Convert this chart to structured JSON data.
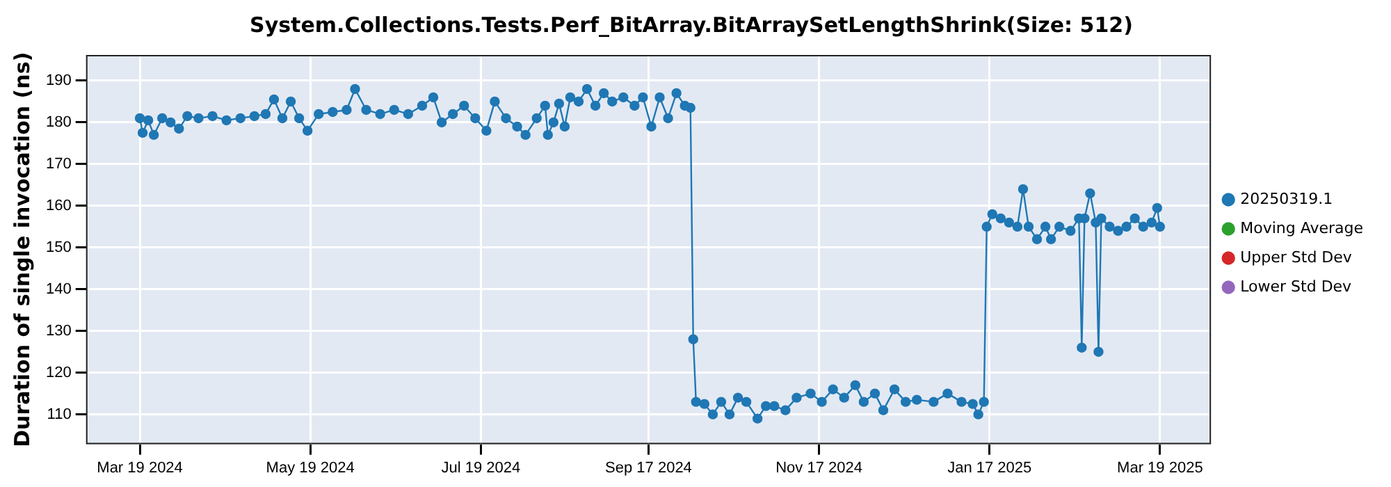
{
  "chart_data": {
    "type": "line",
    "title": "System.Collections.Tests.Perf_BitArray.BitArraySetLengthShrink(Size: 512)",
    "ylabel": "Duration of single invocation (ns)",
    "xlim": [
      "2024-02-29",
      "2025-04-06"
    ],
    "xticks": [
      {
        "value": "2024-03-19",
        "label": "Mar 19 2024"
      },
      {
        "value": "2024-05-19",
        "label": "May 19 2024"
      },
      {
        "value": "2024-07-19",
        "label": "Jul 19 2024"
      },
      {
        "value": "2024-09-17",
        "label": "Sep 17 2024"
      },
      {
        "value": "2024-11-17",
        "label": "Nov 17 2024"
      },
      {
        "value": "2025-01-17",
        "label": "Jan 17 2025"
      },
      {
        "value": "2025-03-19",
        "label": "Mar 19 2025"
      }
    ],
    "ylim": [
      103,
      196
    ],
    "yticks": [
      110,
      120,
      130,
      140,
      150,
      160,
      170,
      180,
      190
    ],
    "grid": true,
    "legend": "right",
    "marker": "circle",
    "line_style": "solid",
    "series": [
      {
        "name": "20250319.1",
        "color": "#1f77b4",
        "x": [
          "2024-03-19",
          "2024-03-20",
          "2024-03-22",
          "2024-03-24",
          "2024-03-27",
          "2024-03-30",
          "2024-04-02",
          "2024-04-05",
          "2024-04-09",
          "2024-04-14",
          "2024-04-19",
          "2024-04-24",
          "2024-04-29",
          "2024-05-03",
          "2024-05-06",
          "2024-05-09",
          "2024-05-12",
          "2024-05-15",
          "2024-05-18",
          "2024-05-22",
          "2024-05-27",
          "2024-06-01",
          "2024-06-04",
          "2024-06-08",
          "2024-06-13",
          "2024-06-18",
          "2024-06-23",
          "2024-06-28",
          "2024-07-02",
          "2024-07-05",
          "2024-07-09",
          "2024-07-13",
          "2024-07-17",
          "2024-07-21",
          "2024-07-24",
          "2024-07-28",
          "2024-08-01",
          "2024-08-04",
          "2024-08-08",
          "2024-08-11",
          "2024-08-12",
          "2024-08-14",
          "2024-08-16",
          "2024-08-18",
          "2024-08-20",
          "2024-08-23",
          "2024-08-26",
          "2024-08-29",
          "2024-09-01",
          "2024-09-04",
          "2024-09-08",
          "2024-09-12",
          "2024-09-15",
          "2024-09-18",
          "2024-09-21",
          "2024-09-24",
          "2024-09-27",
          "2024-09-30",
          "2024-10-02",
          "2024-10-03",
          "2024-10-04",
          "2024-10-07",
          "2024-10-10",
          "2024-10-13",
          "2024-10-16",
          "2024-10-19",
          "2024-10-22",
          "2024-10-26",
          "2024-10-29",
          "2024-11-01",
          "2024-11-05",
          "2024-11-09",
          "2024-11-14",
          "2024-11-18",
          "2024-11-22",
          "2024-11-26",
          "2024-11-30",
          "2024-12-03",
          "2024-12-07",
          "2024-12-10",
          "2024-12-14",
          "2024-12-18",
          "2024-12-22",
          "2024-12-28",
          "2025-01-02",
          "2025-01-07",
          "2025-01-11",
          "2025-01-13",
          "2025-01-15",
          "2025-01-16",
          "2025-01-18",
          "2025-01-21",
          "2025-01-24",
          "2025-01-27",
          "2025-01-29",
          "2025-01-31",
          "2025-02-03",
          "2025-02-06",
          "2025-02-08",
          "2025-02-11",
          "2025-02-15",
          "2025-02-18",
          "2025-02-19",
          "2025-02-20",
          "2025-02-22",
          "2025-02-24",
          "2025-02-25",
          "2025-02-26",
          "2025-03-01",
          "2025-03-04",
          "2025-03-07",
          "2025-03-10",
          "2025-03-13",
          "2025-03-16",
          "2025-03-18",
          "2025-03-19"
        ],
        "values": [
          181,
          177.5,
          180.5,
          177,
          181,
          180,
          178.5,
          181.5,
          181,
          181.5,
          180.5,
          181,
          181.5,
          182,
          185.5,
          181,
          185,
          181,
          178,
          182,
          182.5,
          183,
          188,
          183,
          182,
          183,
          182,
          184,
          186,
          180,
          182,
          184,
          181,
          178,
          185,
          181,
          179,
          177,
          181,
          184,
          177,
          180,
          184.5,
          179,
          186,
          185,
          188,
          184,
          187,
          185,
          186,
          184,
          186,
          179,
          186,
          181,
          187,
          184,
          183.5,
          128,
          113,
          112.5,
          110,
          113,
          110,
          114,
          113,
          109,
          112,
          112,
          111,
          114,
          115,
          113,
          116,
          114,
          117,
          113,
          115,
          111,
          116,
          113,
          113.5,
          113,
          115,
          113,
          112.5,
          110,
          113,
          155,
          158,
          157,
          156,
          155,
          164,
          155,
          152,
          155,
          152,
          155,
          154,
          157,
          126,
          157,
          163,
          156,
          125,
          157,
          155,
          154,
          155,
          157,
          155,
          156,
          159.5,
          155
        ]
      },
      {
        "name": "Moving Average",
        "color": "#2ca02c"
      },
      {
        "name": "Upper Std Dev",
        "color": "#d62728"
      },
      {
        "name": "Lower Std Dev",
        "color": "#9467bd"
      }
    ]
  }
}
